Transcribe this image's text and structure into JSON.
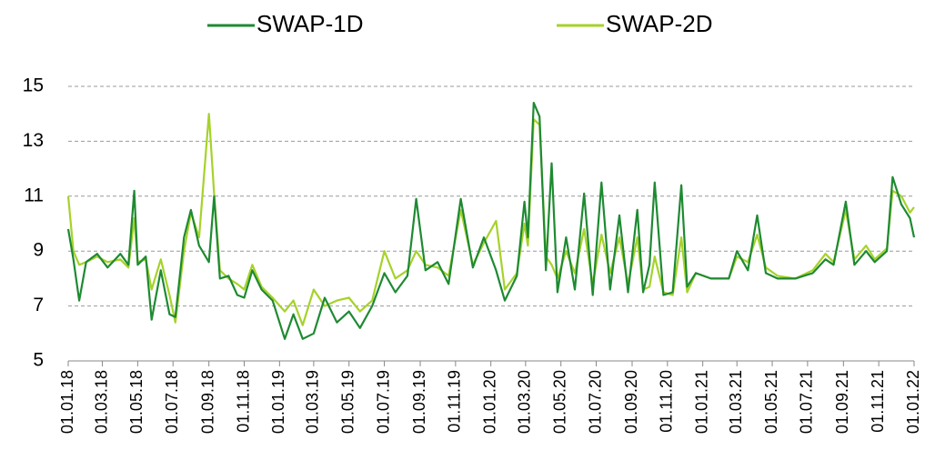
{
  "chart_data": {
    "type": "line",
    "x": [
      "2018-01-01",
      "2018-01-10",
      "2018-01-20",
      "2018-02-01",
      "2018-02-20",
      "2018-03-10",
      "2018-04-01",
      "2018-04-15",
      "2018-04-25",
      "2018-05-01",
      "2018-05-15",
      "2018-05-25",
      "2018-06-10",
      "2018-06-25",
      "2018-07-05",
      "2018-07-20",
      "2018-08-01",
      "2018-08-15",
      "2018-09-01",
      "2018-09-10",
      "2018-09-20",
      "2018-10-05",
      "2018-10-20",
      "2018-11-01",
      "2018-11-15",
      "2018-12-01",
      "2018-12-20",
      "2019-01-10",
      "2019-01-25",
      "2019-02-10",
      "2019-03-01",
      "2019-03-20",
      "2019-04-10",
      "2019-05-01",
      "2019-05-20",
      "2019-06-10",
      "2019-07-01",
      "2019-07-20",
      "2019-08-10",
      "2019-08-25",
      "2019-09-10",
      "2019-10-01",
      "2019-10-20",
      "2019-11-10",
      "2019-12-01",
      "2019-12-20",
      "2020-01-10",
      "2020-01-25",
      "2020-02-15",
      "2020-02-28",
      "2020-03-05",
      "2020-03-15",
      "2020-03-25",
      "2020-04-05",
      "2020-04-15",
      "2020-04-25",
      "2020-05-10",
      "2020-05-25",
      "2020-06-10",
      "2020-06-25",
      "2020-07-10",
      "2020-07-25",
      "2020-08-10",
      "2020-08-25",
      "2020-09-10",
      "2020-09-20",
      "2020-10-01",
      "2020-10-10",
      "2020-10-25",
      "2020-11-10",
      "2020-11-25",
      "2020-12-05",
      "2020-12-20",
      "2021-01-15",
      "2021-02-15",
      "2021-03-01",
      "2021-03-20",
      "2021-04-05",
      "2021-04-20",
      "2021-05-10",
      "2021-06-10",
      "2021-07-10",
      "2021-08-01",
      "2021-08-15",
      "2021-09-05",
      "2021-09-20",
      "2021-10-10",
      "2021-10-25",
      "2021-11-15",
      "2021-11-25",
      "2021-12-10",
      "2021-12-25",
      "2022-01-01"
    ],
    "series": [
      {
        "name": "SWAP-1D",
        "color": "#1e8a32",
        "values": [
          9.8,
          8.7,
          7.2,
          8.6,
          8.9,
          8.4,
          8.9,
          8.5,
          11.2,
          8.5,
          8.8,
          6.5,
          8.3,
          6.7,
          6.6,
          9.5,
          10.5,
          9.2,
          8.6,
          11.0,
          8.0,
          8.1,
          7.4,
          7.3,
          8.3,
          7.6,
          7.2,
          5.8,
          6.7,
          5.8,
          6.0,
          7.3,
          6.4,
          6.8,
          6.2,
          7.0,
          8.2,
          7.5,
          8.1,
          10.9,
          8.3,
          8.6,
          7.8,
          10.9,
          8.4,
          9.5,
          8.3,
          7.2,
          8.1,
          10.8,
          9.5,
          14.4,
          13.9,
          8.3,
          12.2,
          7.5,
          9.5,
          7.6,
          11.1,
          7.4,
          11.5,
          7.6,
          10.3,
          7.5,
          10.5,
          7.5,
          8.5,
          11.5,
          7.4,
          7.5,
          11.4,
          7.7,
          8.2,
          8.0,
          8.0,
          9.0,
          8.3,
          10.3,
          8.2,
          8.0,
          8.0,
          8.2,
          8.7,
          8.5,
          10.8,
          8.5,
          9.0,
          8.6,
          9.0,
          11.7,
          10.7,
          10.2,
          9.5
        ]
      },
      {
        "name": "SWAP-2D",
        "color": "#a6d22a",
        "values": [
          11.0,
          9.0,
          8.5,
          8.6,
          8.8,
          8.6,
          8.7,
          8.4,
          10.2,
          8.6,
          8.7,
          7.6,
          8.7,
          7.4,
          6.4,
          9.0,
          10.4,
          9.5,
          14.0,
          11.1,
          8.3,
          8.0,
          7.8,
          7.6,
          8.5,
          7.7,
          7.3,
          6.8,
          7.2,
          6.3,
          7.6,
          7.0,
          7.2,
          7.3,
          6.8,
          7.2,
          9.0,
          8.0,
          8.3,
          9.0,
          8.5,
          8.4,
          8.1,
          10.5,
          8.5,
          9.3,
          10.1,
          7.6,
          8.2,
          10.0,
          9.2,
          13.8,
          13.6,
          8.8,
          8.5,
          8.0,
          9.0,
          8.2,
          9.8,
          7.8,
          9.6,
          8.2,
          9.5,
          7.8,
          9.5,
          7.6,
          7.7,
          8.8,
          7.5,
          7.4,
          9.5,
          7.5,
          8.2,
          8.0,
          8.0,
          8.8,
          8.6,
          9.6,
          8.4,
          8.1,
          8.0,
          8.3,
          8.9,
          8.6,
          10.5,
          8.7,
          9.2,
          8.7,
          9.1,
          11.2,
          11.0,
          10.4,
          10.6
        ]
      }
    ],
    "xlim": [
      "2018-01-01",
      "2022-01-01"
    ],
    "xticks": [
      {
        "value": "2018-01-01",
        "label": "01.01.18"
      },
      {
        "value": "2018-03-01",
        "label": "01.03.18"
      },
      {
        "value": "2018-05-01",
        "label": "01.05.18"
      },
      {
        "value": "2018-07-01",
        "label": "01.07.18"
      },
      {
        "value": "2018-09-01",
        "label": "01.09.18"
      },
      {
        "value": "2018-11-01",
        "label": "01.11.18"
      },
      {
        "value": "2019-01-01",
        "label": "01.01.19"
      },
      {
        "value": "2019-03-01",
        "label": "01.03.19"
      },
      {
        "value": "2019-05-01",
        "label": "01.05.19"
      },
      {
        "value": "2019-07-01",
        "label": "01.07.19"
      },
      {
        "value": "2019-09-01",
        "label": "01.09.19"
      },
      {
        "value": "2019-11-01",
        "label": "01.11.19"
      },
      {
        "value": "2020-01-01",
        "label": "01.01.20"
      },
      {
        "value": "2020-03-01",
        "label": "01.03.20"
      },
      {
        "value": "2020-05-01",
        "label": "01.05.20"
      },
      {
        "value": "2020-07-01",
        "label": "01.07.20"
      },
      {
        "value": "2020-09-01",
        "label": "01.09.20"
      },
      {
        "value": "2020-11-01",
        "label": "01.11.20"
      },
      {
        "value": "2021-01-01",
        "label": "01.01.21"
      },
      {
        "value": "2021-03-01",
        "label": "01.03.21"
      },
      {
        "value": "2021-05-01",
        "label": "01.05.21"
      },
      {
        "value": "2021-07-01",
        "label": "01.07.21"
      },
      {
        "value": "2021-09-01",
        "label": "01.09.21"
      },
      {
        "value": "2021-11-01",
        "label": "01.11.21"
      },
      {
        "value": "2022-01-01",
        "label": "01.01.22"
      }
    ],
    "ylim": [
      5,
      15
    ],
    "yticks": [
      5,
      7,
      9,
      11,
      13,
      15
    ],
    "grid": true,
    "legend": "top"
  }
}
